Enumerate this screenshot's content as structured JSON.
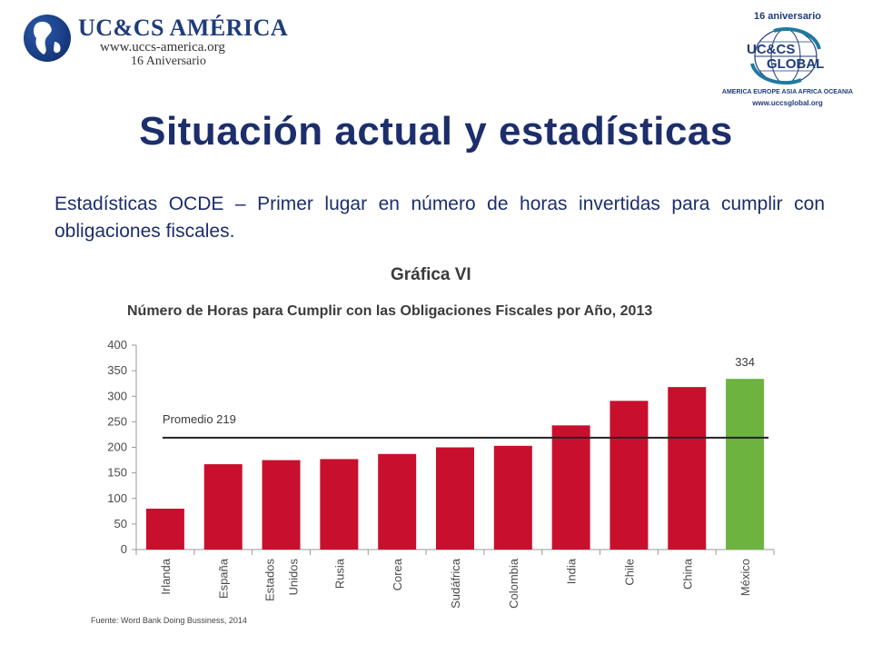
{
  "header": {
    "left_logo": {
      "brand": "UC&CS AMÉRICA",
      "url": "www.uccs-america.org",
      "anniversary": "16 Aniversario"
    },
    "right_logo": {
      "anniversary": "16 aniversario",
      "line1": "UC&CS",
      "line2": "GLOBAL",
      "continents": "AMERICA EUROPE ASIA AFRICA OCEANIA",
      "url": "www.uccsglobal.org"
    }
  },
  "page_title": "Situación actual y estadísticas",
  "subtitle": "Estadísticas OCDE – Primer lugar en número de horas invertidas para cumplir con obligaciones fiscales.",
  "colors": {
    "title": "#1c2e6b",
    "bar_default": "#c8102e",
    "bar_highlight": "#6cb33f",
    "average_line": "#222222"
  },
  "chart_data": {
    "type": "bar",
    "heading": "Gráfica VI",
    "title": "Número de Horas para Cumplir con las  Obligaciones Fiscales por Año, 2013",
    "categories": [
      "Irlanda",
      "España",
      "Estados Unidos",
      "Rusia",
      "Corea",
      "Sudáfrica",
      "Colombia",
      "India",
      "Chile",
      "China",
      "México"
    ],
    "values": [
      80,
      167,
      175,
      177,
      187,
      200,
      203,
      243,
      291,
      318,
      334
    ],
    "highlight_index": 10,
    "highlight_label": "334",
    "average": {
      "label": "Promedio 219",
      "value": 219
    },
    "y_ticks": [
      "400",
      "350",
      "300",
      "250",
      "200",
      "150",
      "100",
      "50",
      "0"
    ],
    "ylim": [
      0,
      400
    ],
    "source": "Fuente: Word Bank Doing Bussiness, 2014",
    "grid": false,
    "legend": "none"
  }
}
